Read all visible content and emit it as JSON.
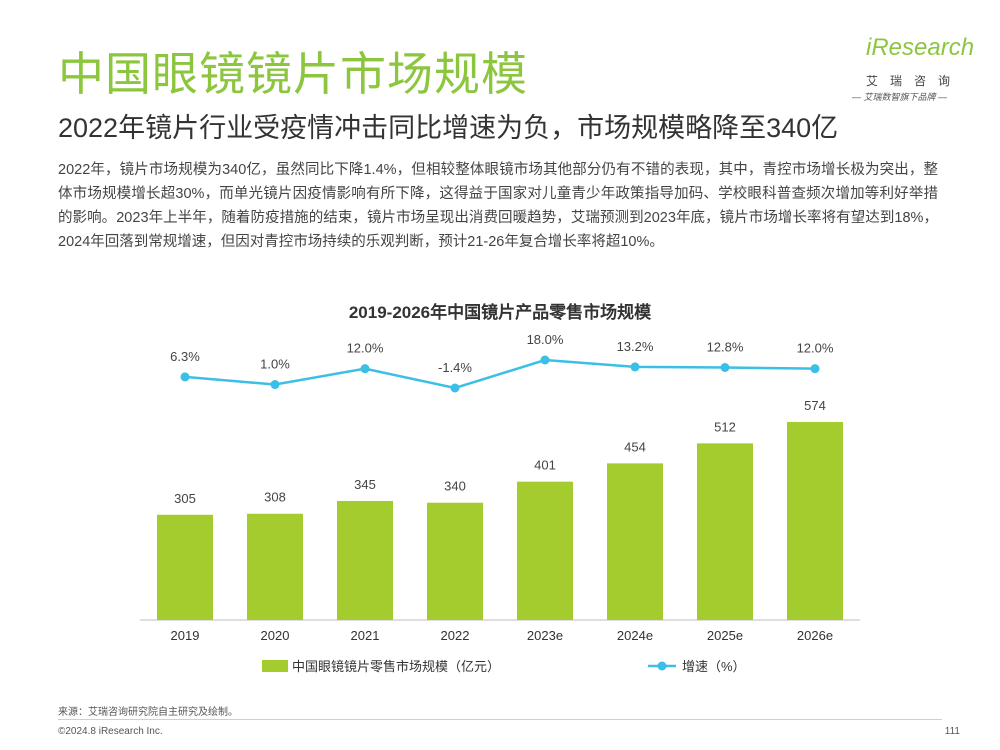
{
  "header": {
    "title": "中国眼镜镜片市场规模",
    "subtitle": "2022年镜片行业受疫情冲击同比增速为负，市场规模略降至340亿",
    "description": "2022年，镜片市场规模为340亿，虽然同比下降1.4%，但相较整体眼镜市场其他部分仍有不错的表现，其中，青控市场增长极为突出，整体市场规模增长超30%，而单光镜片因疫情影响有所下降，这得益于国家对儿童青少年政策指导加码、学校眼科普查频次增加等利好举措的影响。2023年上半年，随着防疫措施的结束，镜片市场呈现出消费回暖趋势，艾瑞预测到2023年底，镜片市场增长率将有望达到18%，2024年回落到常规增速，但因对青控市场持续的乐观判断，预计21-26年复合增长率将超10%。"
  },
  "logo": {
    "word": "iResearch",
    "cn": "艾瑞咨询",
    "tagline": "— 艾瑞数智旗下品牌 —"
  },
  "chart_data": {
    "type": "bar",
    "title": "2019-2026年中国镜片产品零售市场规模",
    "categories": [
      "2019",
      "2020",
      "2021",
      "2022",
      "2023e",
      "2024e",
      "2025e",
      "2026e"
    ],
    "series": [
      {
        "name": "中国眼镜镜片零售市场规模（亿元）",
        "type": "bar",
        "values": [
          305,
          308,
          345,
          340,
          401,
          454,
          512,
          574
        ]
      },
      {
        "name": "增速（%）",
        "type": "line",
        "values": [
          6.3,
          1.0,
          12.0,
          -1.4,
          18.0,
          13.2,
          12.8,
          12.0
        ],
        "labels": [
          "6.3%",
          "1.0%",
          "12.0%",
          "-1.4%",
          "18.0%",
          "13.2%",
          "12.8%",
          "12.0%"
        ]
      }
    ],
    "bar_ylim": [
      0,
      650
    ],
    "line_ylim": [
      -40,
      55
    ],
    "colors": {
      "bar": "#a4cc2e",
      "line": "#3bbfe6"
    },
    "legend_position": "bottom"
  },
  "footer": {
    "source": "来源：艾瑞咨询研究院自主研究及绘制。",
    "copyright": "©2024.8 iResearch Inc.",
    "page": "111"
  }
}
